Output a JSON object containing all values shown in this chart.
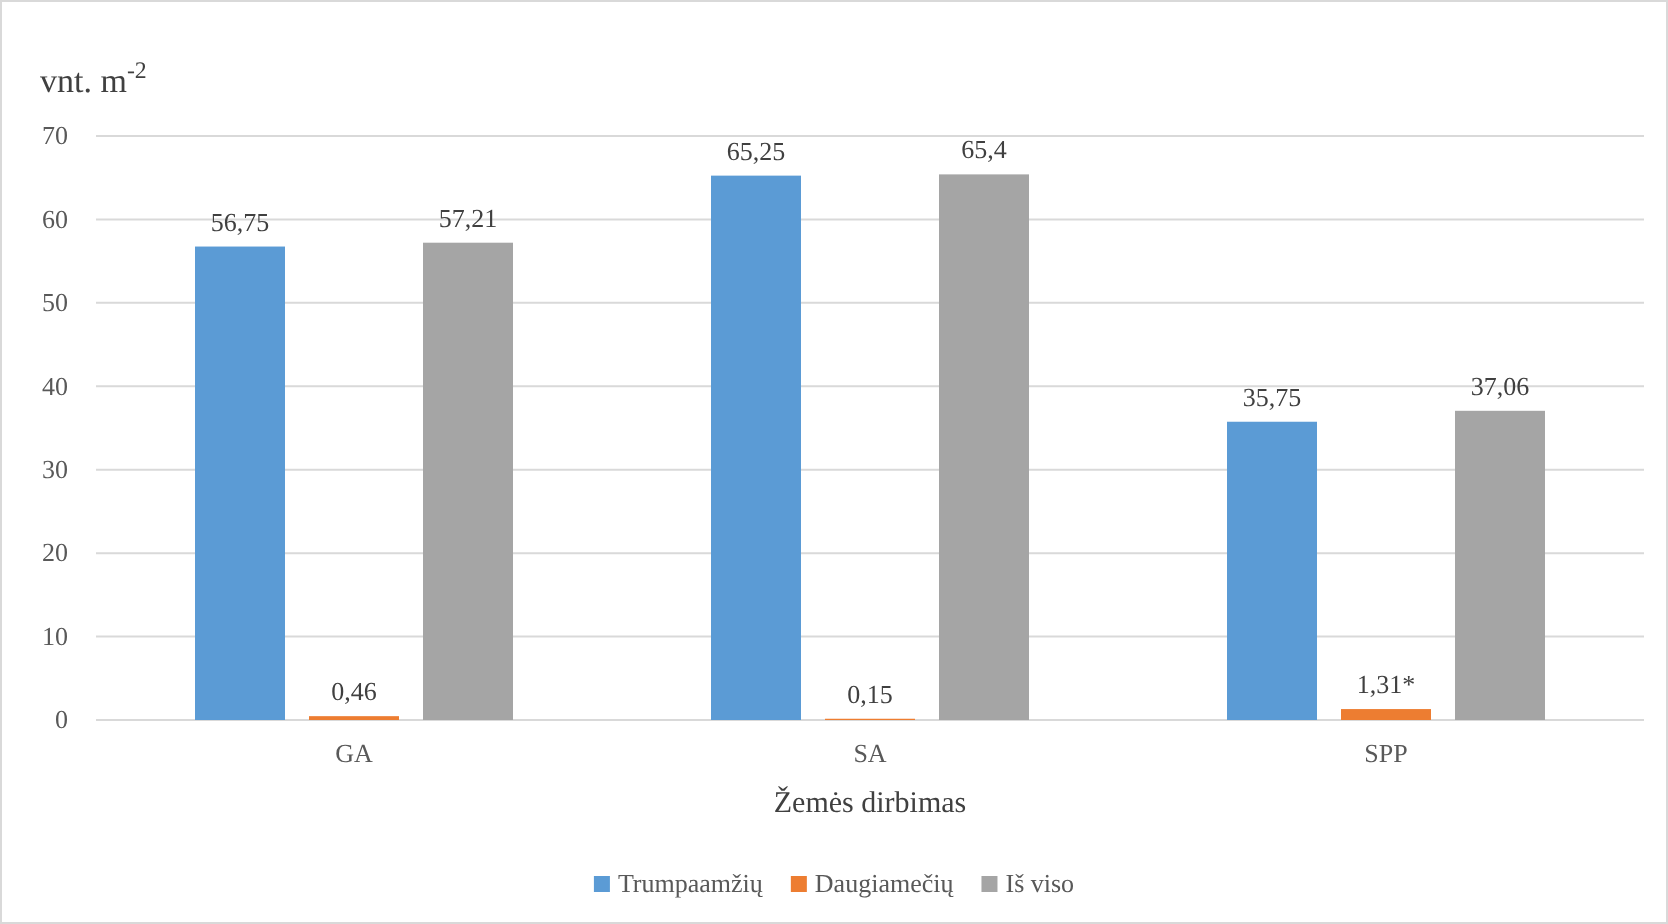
{
  "chart_data": {
    "type": "bar",
    "xlabel": "Žemės dirbimas",
    "ylabel": "vnt. m$^{-2}$",
    "categories": [
      "GA",
      "SA",
      "SPP"
    ],
    "series": [
      {
        "name": "Trumpaamžių",
        "color": "#5b9bd5",
        "values": [
          56.75,
          65.25,
          35.75
        ],
        "value_labels": [
          "56,75",
          "65,25",
          "35,75"
        ]
      },
      {
        "name": "Daugiamečių",
        "color": "#ed7d31",
        "values": [
          0.46,
          0.15,
          1.31
        ],
        "value_labels": [
          "0,46",
          "0,15",
          "1,31*"
        ]
      },
      {
        "name": "Iš viso",
        "color": "#a5a5a5",
        "values": [
          57.21,
          65.4,
          37.06
        ],
        "value_labels": [
          "57,21",
          "65,4",
          "37,06"
        ]
      }
    ],
    "ylim": [
      0,
      70
    ],
    "yticks": [
      0,
      10,
      20,
      30,
      40,
      50,
      60,
      70
    ],
    "grid": "y",
    "legend": "bottom"
  }
}
